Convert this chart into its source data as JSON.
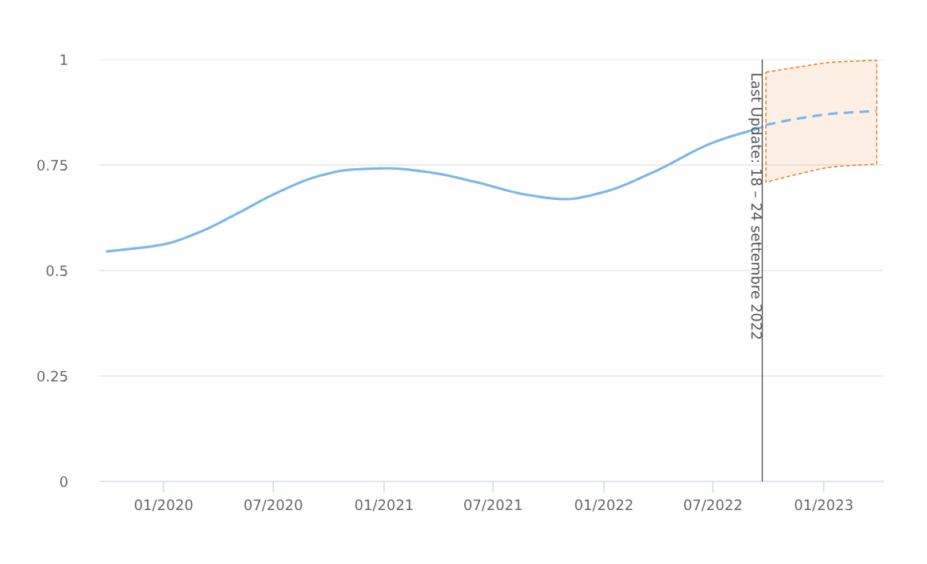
{
  "chart_data": {
    "type": "line",
    "xlim": [
      "2019-09-16",
      "2023-04-10"
    ],
    "xticks": [
      {
        "value": "2020-01-01",
        "label": "01/2020"
      },
      {
        "value": "2020-07-01",
        "label": "07/2020"
      },
      {
        "value": "2021-01-01",
        "label": "01/2021"
      },
      {
        "value": "2021-07-01",
        "label": "07/2021"
      },
      {
        "value": "2022-01-01",
        "label": "01/2022"
      },
      {
        "value": "2022-07-01",
        "label": "07/2022"
      },
      {
        "value": "2023-01-01",
        "label": "01/2023"
      }
    ],
    "ylim": [
      0,
      1
    ],
    "yticks": [
      0,
      0.25,
      0.5,
      0.75,
      1
    ],
    "grid": "y",
    "series": [
      {
        "color": "#7cb5ec",
        "line_style": "solid",
        "x": [
          "2019-09-29",
          "2020-01-01",
          "2020-02-28",
          "2020-05-05",
          "2020-07-01",
          "2020-09-15",
          "2020-11-07",
          "2021-01-08",
          "2021-03-16",
          "2021-06-04",
          "2021-08-24",
          "2021-10-29",
          "2022-01-01",
          "2022-03-24",
          "2022-07-01",
          "2022-09-21"
        ],
        "values": [
          0.545,
          0.562,
          0.59,
          0.637,
          0.68,
          0.724,
          0.739,
          0.742,
          0.733,
          0.709,
          0.68,
          0.669,
          0.686,
          0.733,
          0.803,
          0.84
        ]
      },
      {
        "color": "#7cb5ec",
        "line_style": "dashed",
        "x": [
          "2022-09-27",
          "2022-11-15",
          "2023-01-20",
          "2023-03-30"
        ],
        "values": [
          0.845,
          0.859,
          0.872,
          0.878
        ],
        "lower": [
          0.709,
          0.727,
          0.746,
          0.752
        ],
        "upper": [
          0.97,
          0.981,
          0.994,
          0.998
        ]
      }
    ],
    "ref_lines": [
      {
        "axis": "x",
        "value": "2022-09-21",
        "label": "Last Update: 18 – 24 settembre 2022",
        "color": "#555555"
      }
    ]
  }
}
